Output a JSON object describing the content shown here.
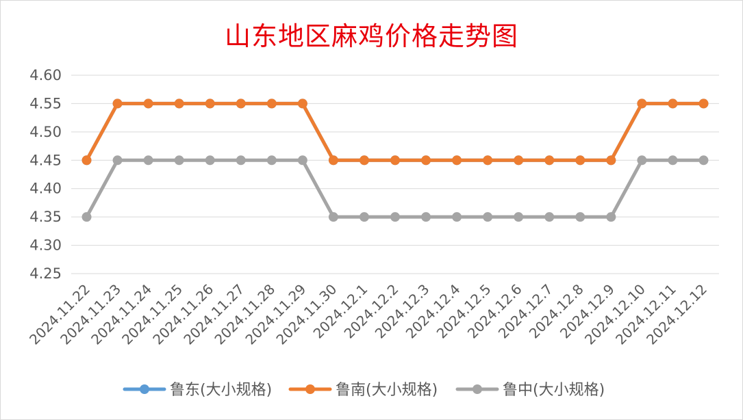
{
  "chart_data": {
    "type": "line",
    "title": "山东地区麻鸡价格走势图",
    "categories": [
      "2024.11.22",
      "2024.11.23",
      "2024.11.24",
      "2024.11.25",
      "2024.11.26",
      "2024.11.27",
      "2024.11.28",
      "2024.11.29",
      "2024.11.30",
      "2024.12.1",
      "2024.12.2",
      "2024.12.3",
      "2024.12.4",
      "2024.12.5",
      "2024.12.6",
      "2024.12.7",
      "2024.12.8",
      "2024.12.9",
      "2024.12.10",
      "2024.12.11",
      "2024.12.12"
    ],
    "yticks": [
      "4.60",
      "4.55",
      "4.50",
      "4.45",
      "4.40",
      "4.35",
      "4.30",
      "4.25"
    ],
    "ylim": [
      4.25,
      4.6
    ],
    "grid": true,
    "legend_position": "bottom",
    "series": [
      {
        "name": "鲁东(大小规格)",
        "color": "#5b9bd5",
        "values": [
          4.45,
          4.55,
          4.55,
          4.55,
          4.55,
          4.55,
          4.55,
          4.55,
          4.45,
          4.45,
          4.45,
          4.45,
          4.45,
          4.45,
          4.45,
          4.45,
          4.45,
          4.45,
          4.55,
          4.55,
          4.55
        ]
      },
      {
        "name": "鲁南(大小规格)",
        "color": "#ed7d31",
        "values": [
          4.45,
          4.55,
          4.55,
          4.55,
          4.55,
          4.55,
          4.55,
          4.55,
          4.45,
          4.45,
          4.45,
          4.45,
          4.45,
          4.45,
          4.45,
          4.45,
          4.45,
          4.45,
          4.55,
          4.55,
          4.55
        ]
      },
      {
        "name": "鲁中(大小规格)",
        "color": "#a5a5a5",
        "values": [
          4.35,
          4.45,
          4.45,
          4.45,
          4.45,
          4.45,
          4.45,
          4.45,
          4.35,
          4.35,
          4.35,
          4.35,
          4.35,
          4.35,
          4.35,
          4.35,
          4.35,
          4.35,
          4.45,
          4.45,
          4.45
        ]
      }
    ]
  }
}
